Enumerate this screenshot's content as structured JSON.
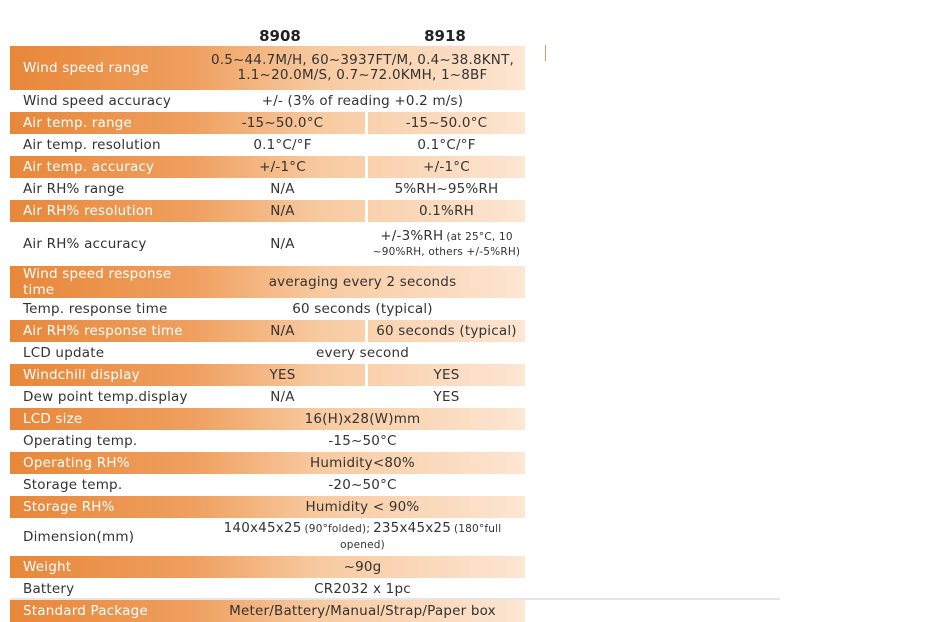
{
  "header": {
    "columns": [
      "8908",
      "8918"
    ]
  },
  "table": {
    "rows": [
      {
        "label": "Wind speed range",
        "values": [
          [
            "0.5~44.7M/H, 60~3937FT/M, 0.4~38.8KNT,",
            "1.1~20.0M/S, 0.7~72.0KMH, 1~8BF"
          ]
        ]
      },
      {
        "label": "Wind speed accuracy",
        "values": [
          "+/- (3% of reading +0.2 m/s)"
        ]
      },
      {
        "label": "Air temp. range",
        "values": [
          "-15~50.0°C",
          "-15~50.0°C"
        ]
      },
      {
        "label": "Air temp. resolution",
        "values": [
          "0.1°C/°F",
          "0.1°C/°F"
        ]
      },
      {
        "label": "Air temp. accuracy",
        "values": [
          "+/-1°C",
          "+/-1°C"
        ]
      },
      {
        "label": "Air RH% range",
        "values": [
          "N/A",
          "5%RH~95%RH"
        ]
      },
      {
        "label": "Air RH% resolution",
        "values": [
          "N/A",
          "0.1%RH"
        ]
      },
      {
        "label": "Air RH% accuracy",
        "values": [
          "N/A",
          [
            {
              "text": "+/-3%RH"
            },
            {
              "text": "(at 25°C, 10",
              "small": true
            },
            {
              "text": "~90%RH, others +/-5%RH)",
              "small": true,
              "newline": true
            }
          ]
        ]
      },
      {
        "label": "Wind speed response time",
        "values": [
          "averaging every 2 seconds"
        ]
      },
      {
        "label": "Temp. response time",
        "values": [
          "60 seconds (typical)"
        ]
      },
      {
        "label": "Air RH% response time",
        "values": [
          "N/A",
          "60 seconds (typical)"
        ]
      },
      {
        "label": "LCD update",
        "values": [
          "every second"
        ]
      },
      {
        "label": "Windchill display",
        "values": [
          "YES",
          "YES"
        ]
      },
      {
        "label": "Dew point temp.display",
        "values": [
          "N/A",
          "YES"
        ]
      },
      {
        "label": "LCD size",
        "values": [
          "16(H)x28(W)mm"
        ]
      },
      {
        "label": "Operating temp.",
        "values": [
          "-15~50°C"
        ]
      },
      {
        "label": "Operating RH%",
        "values": [
          "Humidity<80%"
        ]
      },
      {
        "label": "Storage temp.",
        "values": [
          "-20~50°C"
        ]
      },
      {
        "label": "Storage RH%",
        "values": [
          "Humidity < 90%"
        ]
      },
      {
        "label": "Dimension(mm)",
        "values": [
          [
            {
              "text": "140x45x25"
            },
            {
              "text": "(90°folded);",
              "small": true
            },
            {
              "text": "235x45x25"
            },
            {
              "text": "(180°full opened)",
              "small": true
            }
          ]
        ]
      },
      {
        "label": "Weight",
        "values": [
          "~90g"
        ]
      },
      {
        "label": "Battery",
        "values": [
          "CR2032 x 1pc"
        ]
      },
      {
        "label": "Standard Package",
        "values": [
          "Meter/Battery/Manual/Strap/Paper box"
        ]
      }
    ]
  }
}
